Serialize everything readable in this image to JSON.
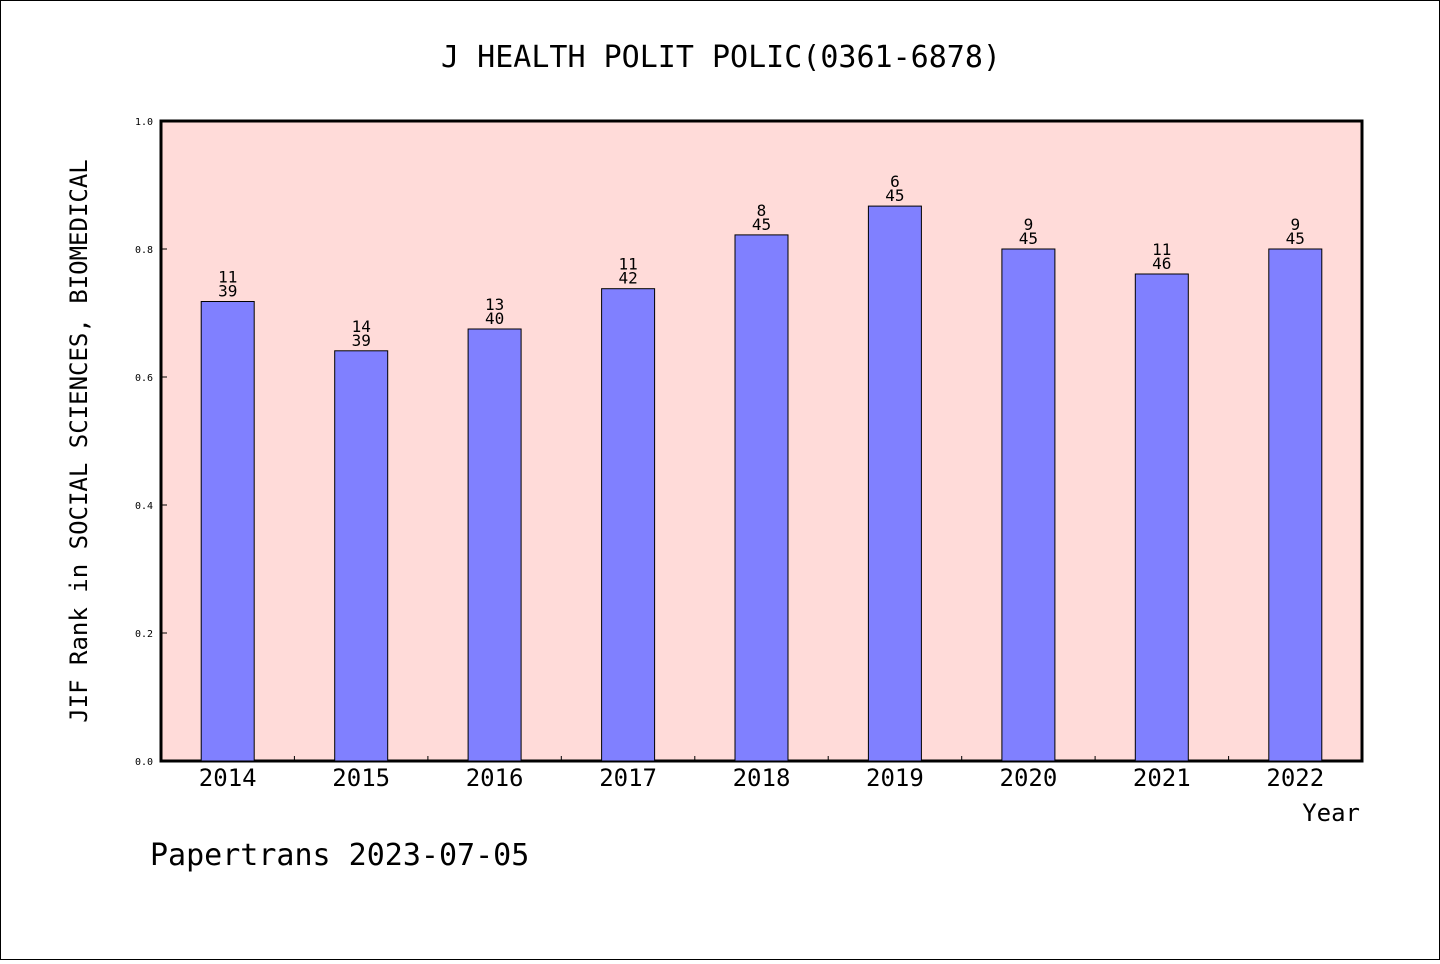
{
  "chart_data": {
    "type": "bar",
    "title": "J HEALTH POLIT POLIC(0361-6878)",
    "xlabel": "Year",
    "ylabel": "JIF Rank in SOCIAL SCIENCES, BIOMEDICAL",
    "ylim": [
      0,
      1.0
    ],
    "yticks": [
      "0.0",
      "0.2",
      "0.4",
      "0.6",
      "0.8",
      "1.0"
    ],
    "ytick_values": [
      0,
      0.2,
      0.4,
      0.6,
      0.8,
      1.0
    ],
    "categories": [
      "2014",
      "2015",
      "2016",
      "2017",
      "2018",
      "2019",
      "2020",
      "2021",
      "2022"
    ],
    "values": [
      0.718,
      0.641,
      0.675,
      0.738,
      0.822,
      0.867,
      0.8,
      0.761,
      0.8
    ],
    "labels_top": [
      "11",
      "14",
      "13",
      "11",
      "8",
      "6",
      "9",
      "11",
      "9"
    ],
    "labels_bottom": [
      "39",
      "39",
      "40",
      "42",
      "45",
      "45",
      "45",
      "46",
      "45"
    ],
    "colors": {
      "plot_background": "#ffdbd9",
      "bar_fill": "#8080ff",
      "bar_stroke": "#000000"
    },
    "grid": false,
    "legend": "none"
  },
  "footer": {
    "text": "Papertrans 2023-07-05"
  }
}
